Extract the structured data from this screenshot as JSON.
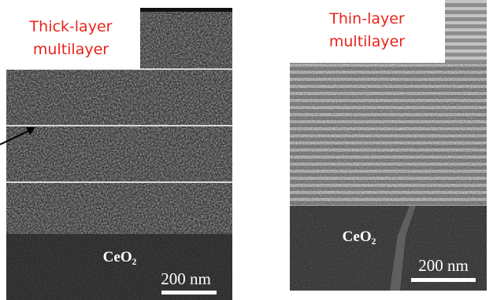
{
  "panels": [
    {
      "label_lines": [
        "Thick-layer",
        "multilayer"
      ],
      "substrate": "CeO₂",
      "scale_bar": "200 nm"
    },
    {
      "label_lines": [
        "Thin-layer",
        "multilayer"
      ],
      "substrate": "CeO₂",
      "scale_bar": "200 nm"
    }
  ]
}
